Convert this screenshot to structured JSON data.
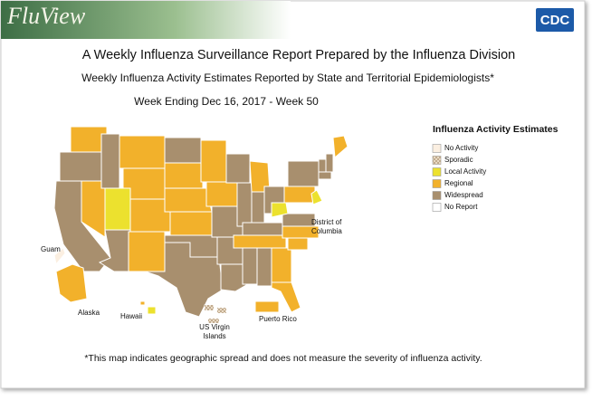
{
  "header": {
    "banner": "FluView",
    "logo": "CDC"
  },
  "title": "A Weekly Influenza Surveillance Report Prepared by the Influenza Division",
  "subtitle": "Weekly Influenza Activity Estimates Reported by State and Territorial Epidemiologists*",
  "week": "Week Ending Dec 16, 2017 - Week 50",
  "legend": {
    "title": "Influenza Activity Estimates",
    "items": [
      {
        "label": "No Activity",
        "color": "#fbefe1"
      },
      {
        "label": "Sporadic",
        "color": "#f3e6d2"
      },
      {
        "label": "Local Activity",
        "color": "#ece12e"
      },
      {
        "label": "Regional",
        "color": "#f2b12b"
      },
      {
        "label": "Widespread",
        "color": "#a88f6e"
      },
      {
        "label": "No Report",
        "color": "#ffffff"
      }
    ]
  },
  "map_labels": {
    "guam": "Guam",
    "alaska": "Alaska",
    "hawaii": "Hawaii",
    "virgin_islands": [
      "US Virgin",
      "Islands"
    ],
    "puerto_rico": "Puerto Rico",
    "dc": [
      "District of",
      "Columbia"
    ]
  },
  "footnote": "*This map indicates geographic spread and does not measure the severity of influenza activity."
}
